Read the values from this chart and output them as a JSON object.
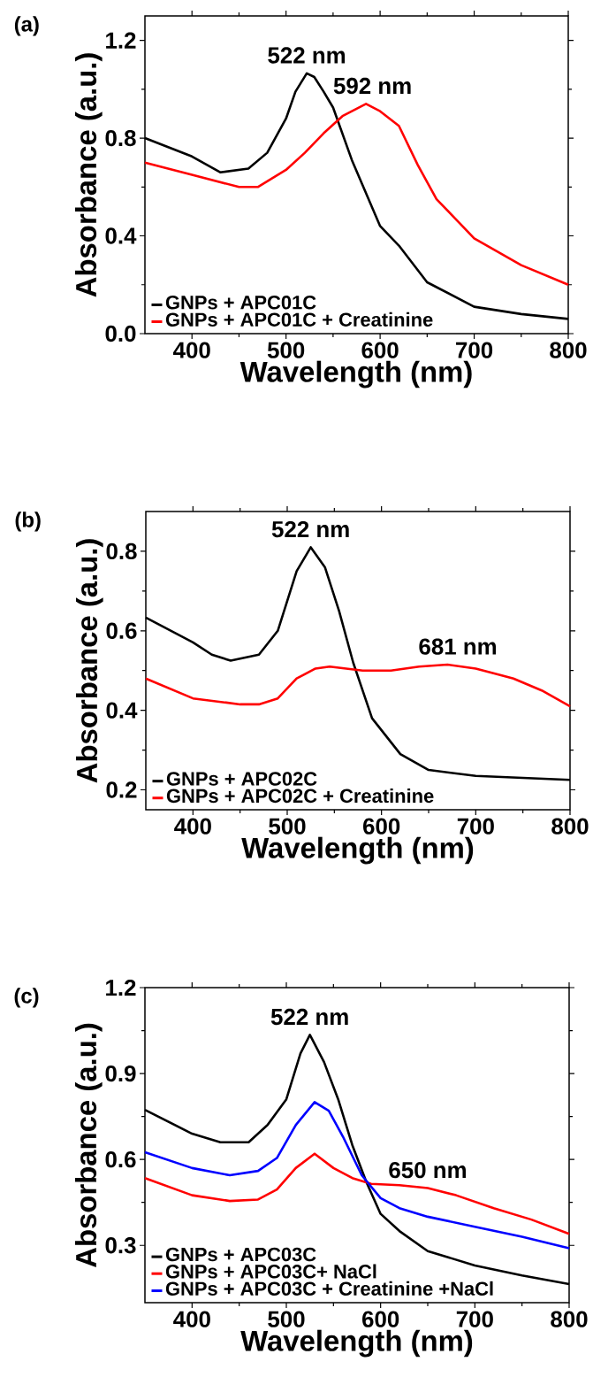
{
  "chart_data": [
    {
      "type": "line",
      "title": "(a)",
      "xlabel": "Wavelength (nm)",
      "ylabel": "Absorbance (a.u.)",
      "xlim": [
        350,
        800
      ],
      "ylim": [
        0,
        1.3
      ],
      "xticks": [
        400,
        500,
        600,
        700,
        800
      ],
      "yticks": [
        {
          "value": 0,
          "label": "0.0"
        },
        0.4,
        0.8,
        1.2
      ],
      "legend": "bottom left",
      "annotations": [
        {
          "text": "522 nm",
          "x": 522,
          "y": 1.065
        },
        {
          "text": "592 nm",
          "x": 592,
          "y": 0.94
        }
      ],
      "series": [
        {
          "name": "GNPs + APC01C",
          "color": "#000000",
          "x": [
            350,
            400,
            430,
            460,
            480,
            500,
            510,
            522,
            530,
            540,
            550,
            570,
            600,
            620,
            650,
            700,
            750,
            800
          ],
          "values": [
            0.8,
            0.725,
            0.66,
            0.675,
            0.74,
            0.88,
            0.99,
            1.065,
            1.05,
            0.99,
            0.925,
            0.71,
            0.44,
            0.36,
            0.21,
            0.11,
            0.08,
            0.06
          ]
        },
        {
          "name": "GNPs + APC01C + Creatinine",
          "color": "#ff0000",
          "x": [
            350,
            400,
            450,
            470,
            500,
            520,
            540,
            560,
            585,
            600,
            620,
            640,
            660,
            700,
            750,
            800
          ],
          "values": [
            0.7,
            0.65,
            0.6,
            0.6,
            0.67,
            0.74,
            0.82,
            0.89,
            0.94,
            0.91,
            0.85,
            0.69,
            0.55,
            0.39,
            0.28,
            0.2
          ]
        }
      ]
    },
    {
      "type": "line",
      "title": "(b)",
      "xlabel": "Wavelength (nm)",
      "ylabel": "Absorbance (a.u.)",
      "xlim": [
        350,
        800
      ],
      "ylim": [
        0.15,
        0.9
      ],
      "xticks": [
        400,
        500,
        600,
        700,
        800
      ],
      "yticks": [
        0.2,
        0.4,
        0.6,
        0.8
      ],
      "legend": "bottom left",
      "annotations": [
        {
          "text": "522 nm",
          "x": 525,
          "y": 0.81
        },
        {
          "text": "681 nm",
          "x": 681,
          "y": 0.515
        }
      ],
      "series": [
        {
          "name": "GNPs + APC02C",
          "color": "#000000",
          "x": [
            350,
            400,
            420,
            440,
            470,
            490,
            510,
            525,
            540,
            555,
            570,
            590,
            620,
            650,
            700,
            750,
            800
          ],
          "values": [
            0.633,
            0.571,
            0.54,
            0.525,
            0.54,
            0.6,
            0.75,
            0.81,
            0.76,
            0.65,
            0.52,
            0.38,
            0.29,
            0.25,
            0.235,
            0.23,
            0.225
          ]
        },
        {
          "name": "GNPs + APC02C + Creatinine",
          "color": "#ff0000",
          "x": [
            350,
            400,
            450,
            470,
            490,
            510,
            530,
            545,
            580,
            610,
            640,
            670,
            700,
            740,
            770,
            800
          ],
          "values": [
            0.48,
            0.43,
            0.415,
            0.415,
            0.43,
            0.48,
            0.505,
            0.51,
            0.5,
            0.5,
            0.51,
            0.515,
            0.505,
            0.48,
            0.45,
            0.41
          ]
        }
      ]
    },
    {
      "type": "line",
      "title": "(c)",
      "xlabel": "Wavelength (nm)",
      "ylabel": "Absorbance (a.u.)",
      "xlim": [
        350,
        800
      ],
      "ylim": [
        0.1,
        1.2
      ],
      "xticks": [
        400,
        500,
        600,
        700,
        800
      ],
      "yticks": [
        0.3,
        0.6,
        0.9,
        1.2
      ],
      "legend": "bottom left",
      "annotations": [
        {
          "text": "522 nm",
          "x": 525,
          "y": 1.035
        },
        {
          "text": "650 nm",
          "x": 650,
          "y": 0.5
        }
      ],
      "series": [
        {
          "name": "GNPs + APC03C",
          "color": "#000000",
          "x": [
            350,
            400,
            430,
            460,
            480,
            500,
            515,
            525,
            540,
            555,
            570,
            585,
            600,
            620,
            650,
            700,
            750,
            800
          ],
          "values": [
            0.773,
            0.69,
            0.66,
            0.66,
            0.72,
            0.81,
            0.97,
            1.035,
            0.94,
            0.81,
            0.65,
            0.52,
            0.41,
            0.35,
            0.28,
            0.23,
            0.195,
            0.165
          ]
        },
        {
          "name": "GNPs + APC03C+ NaCl",
          "color": "#ff0000",
          "x": [
            350,
            400,
            440,
            470,
            490,
            510,
            530,
            550,
            570,
            590,
            620,
            650,
            680,
            720,
            760,
            800
          ],
          "values": [
            0.535,
            0.475,
            0.455,
            0.46,
            0.495,
            0.57,
            0.62,
            0.57,
            0.535,
            0.515,
            0.51,
            0.5,
            0.475,
            0.43,
            0.39,
            0.34
          ]
        },
        {
          "name": "GNPs + APC03C + Creatinine +NaCl",
          "color": "#0000ff",
          "x": [
            350,
            400,
            440,
            470,
            490,
            510,
            530,
            545,
            560,
            580,
            600,
            620,
            650,
            700,
            750,
            800
          ],
          "values": [
            0.625,
            0.57,
            0.545,
            0.56,
            0.605,
            0.72,
            0.8,
            0.77,
            0.68,
            0.545,
            0.465,
            0.43,
            0.4,
            0.365,
            0.33,
            0.29
          ]
        }
      ]
    }
  ]
}
